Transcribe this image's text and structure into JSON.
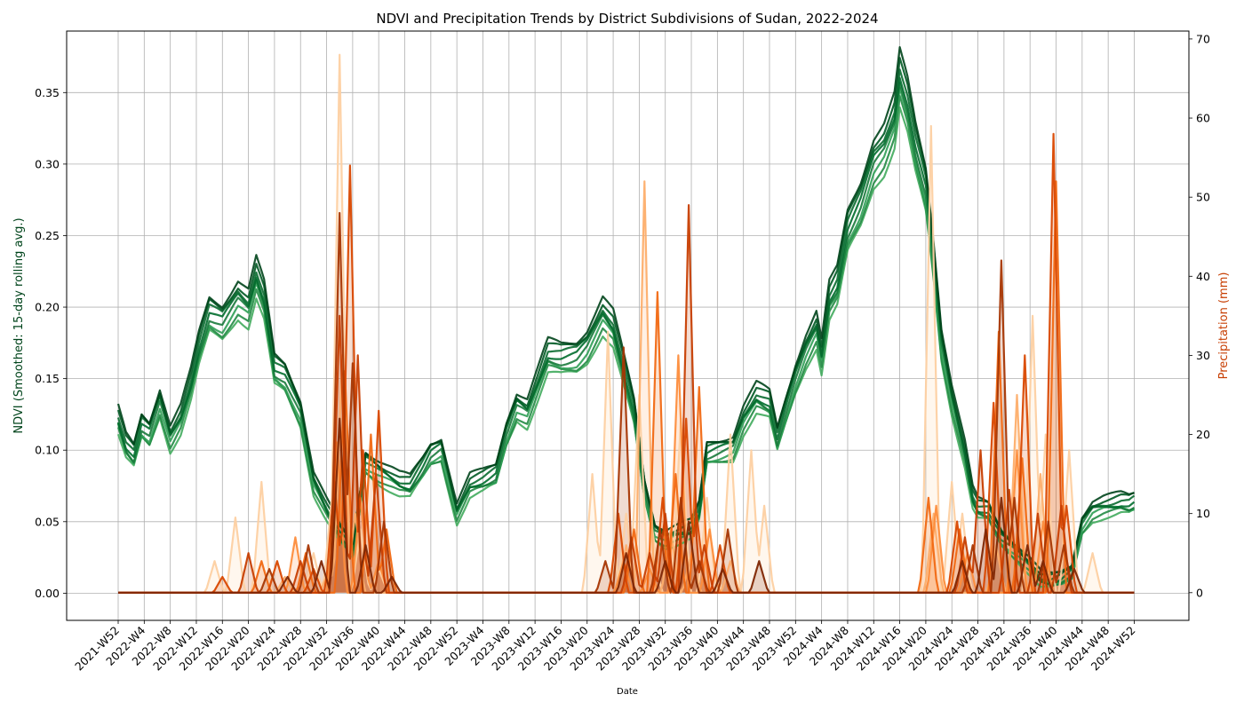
{
  "chart_data": {
    "type": "line",
    "title": "NDVI and Precipitation Trends by District Subdivisions of Sudan, 2022-2024",
    "xlabel": "Date",
    "ylabel_left": "NDVI (Smoothed: 15-day rolling avg.)",
    "ylabel_right": "Precipitation (mm)",
    "ylabel_left_color": "#00441b",
    "ylabel_right_color": "#c73e02",
    "ylim_left": [
      -0.019,
      0.393
    ],
    "ylim_right": [
      -3.5,
      71
    ],
    "yticks_left": [
      "0.00",
      "0.05",
      "0.10",
      "0.15",
      "0.20",
      "0.25",
      "0.30",
      "0.35"
    ],
    "yticks_right": [
      "0",
      "10",
      "20",
      "30",
      "40",
      "50",
      "60",
      "70"
    ],
    "grid": true,
    "x_ticks": [
      "2021-W52",
      "2022-W4",
      "2022-W8",
      "2022-W12",
      "2022-W16",
      "2022-W20",
      "2022-W24",
      "2022-W28",
      "2022-W32",
      "2022-W36",
      "2022-W40",
      "2022-W44",
      "2022-W48",
      "2022-W52",
      "2023-W4",
      "2023-W8",
      "2023-W12",
      "2023-W16",
      "2023-W20",
      "2023-W24",
      "2023-W28",
      "2023-W32",
      "2023-W36",
      "2023-W40",
      "2023-W44",
      "2023-W48",
      "2023-W52",
      "2024-W4",
      "2024-W8",
      "2024-W12",
      "2024-W16",
      "2024-W20",
      "2024-W24",
      "2024-W28",
      "2024-W32",
      "2024-W36",
      "2024-W40",
      "2024-W44",
      "2024-W48",
      "2024-W52"
    ],
    "ndvi_base": {
      "x": [
        0,
        0.3,
        0.6,
        0.9,
        1.2,
        1.6,
        2,
        2.4,
        2.8,
        3.1,
        3.5,
        4,
        4.6,
        5,
        5.3,
        5.6,
        6,
        6.4,
        7,
        7.5,
        8,
        8.5,
        9,
        9.5,
        10,
        10.5,
        10.8,
        11.2,
        11.7,
        12,
        12.4,
        13,
        13.5,
        14,
        14.5,
        14.9,
        15.3,
        15.7,
        16,
        16.5,
        17,
        17.6,
        18,
        18.6,
        19,
        19.4,
        19.8,
        20.2,
        20.6,
        21,
        22,
        22.3,
        22.6,
        23,
        23.6,
        24,
        24.5,
        25,
        25.3,
        25.6,
        26,
        26.4,
        26.8,
        27,
        27.3,
        27.6,
        28,
        28.5,
        29,
        29.4,
        29.8,
        30,
        30.3,
        30.6,
        31,
        31.3,
        31.6,
        32,
        32.5,
        32.8,
        33,
        33.4,
        33.6,
        33.9,
        34.2,
        34.6,
        35,
        35.4,
        35.8,
        36.2,
        36.6,
        37,
        37.4,
        37.8,
        38.2,
        38.5,
        38.8,
        39
      ],
      "y": [
        0.124,
        0.105,
        0.098,
        0.12,
        0.115,
        0.138,
        0.112,
        0.125,
        0.15,
        0.175,
        0.2,
        0.195,
        0.212,
        0.205,
        0.227,
        0.21,
        0.16,
        0.155,
        0.13,
        0.08,
        0.06,
        0.042,
        0.03,
        0.095,
        0.088,
        0.082,
        0.078,
        0.076,
        0.09,
        0.1,
        0.104,
        0.058,
        0.077,
        0.08,
        0.085,
        0.115,
        0.135,
        0.13,
        0.145,
        0.17,
        0.168,
        0.17,
        0.178,
        0.2,
        0.19,
        0.16,
        0.13,
        0.075,
        0.045,
        0.04,
        0.045,
        0.058,
        0.1,
        0.102,
        0.105,
        0.125,
        0.14,
        0.135,
        0.11,
        0.13,
        0.155,
        0.175,
        0.19,
        0.17,
        0.21,
        0.22,
        0.26,
        0.28,
        0.31,
        0.32,
        0.34,
        0.37,
        0.35,
        0.32,
        0.29,
        0.24,
        0.18,
        0.14,
        0.1,
        0.068,
        0.06,
        0.058,
        0.05,
        0.04,
        0.035,
        0.028,
        0.02,
        0.01,
        0.008,
        0.01,
        0.015,
        0.05,
        0.06,
        0.062,
        0.063,
        0.064,
        0.063,
        0.065
      ]
    },
    "precip_series": [
      {
        "color": "#fdd0a2",
        "opacity": 0.95,
        "peaks": [
          [
            3.7,
            4
          ],
          [
            4.5,
            9.5
          ],
          [
            5.5,
            14
          ],
          [
            7.5,
            5
          ],
          [
            8.2,
            12
          ],
          [
            8.5,
            68
          ],
          [
            9.3,
            8
          ],
          [
            10,
            3
          ],
          [
            18.2,
            15
          ],
          [
            18.8,
            33
          ],
          [
            19.5,
            10
          ],
          [
            20,
            25
          ],
          [
            20.5,
            8
          ],
          [
            21.6,
            22
          ],
          [
            22.6,
            12
          ],
          [
            23.5,
            20
          ],
          [
            24.3,
            18
          ],
          [
            24.8,
            11
          ],
          [
            32,
            14
          ],
          [
            32.4,
            10
          ],
          [
            35.1,
            35
          ],
          [
            35.6,
            20
          ],
          [
            36.5,
            18
          ],
          [
            37.4,
            5
          ],
          [
            31.2,
            59
          ]
        ]
      },
      {
        "color": "#fdae6b",
        "opacity": 0.95,
        "peaks": [
          [
            6.4,
            2
          ],
          [
            8.1,
            3
          ],
          [
            8.6,
            30
          ],
          [
            9.1,
            10
          ],
          [
            19.5,
            6
          ],
          [
            20.2,
            52
          ],
          [
            21.2,
            8
          ],
          [
            22,
            5
          ],
          [
            23.5,
            4
          ],
          [
            31.3,
            10
          ],
          [
            33.7,
            6
          ],
          [
            34.5,
            25
          ],
          [
            35.4,
            15
          ]
        ]
      },
      {
        "color": "#fd8d3c",
        "opacity": 0.95,
        "peaks": [
          [
            6.8,
            7
          ],
          [
            8.4,
            19
          ],
          [
            9.3,
            12
          ],
          [
            10,
            4
          ],
          [
            19.4,
            4
          ],
          [
            20.4,
            3
          ],
          [
            21.5,
            30
          ],
          [
            22.7,
            8
          ],
          [
            31.4,
            11
          ],
          [
            32.6,
            5
          ],
          [
            34.5,
            18
          ],
          [
            35.5,
            9
          ]
        ]
      },
      {
        "color": "#f16913",
        "opacity": 0.95,
        "peaks": [
          [
            5.5,
            4
          ],
          [
            7.2,
            5
          ],
          [
            8.7,
            28
          ],
          [
            9.7,
            20
          ],
          [
            10.3,
            8
          ],
          [
            19.8,
            8
          ],
          [
            20.7,
            38
          ],
          [
            21.4,
            15
          ],
          [
            22.3,
            26
          ],
          [
            31.1,
            12
          ],
          [
            32.3,
            8
          ],
          [
            33.8,
            33
          ],
          [
            34.7,
            17
          ],
          [
            36,
            52
          ]
        ]
      },
      {
        "color": "#d94801",
        "opacity": 0.95,
        "peaks": [
          [
            4,
            2
          ],
          [
            6.1,
            4
          ],
          [
            7.5,
            3
          ],
          [
            8.3,
            14
          ],
          [
            8.9,
            54
          ],
          [
            9.4,
            18
          ],
          [
            10,
            23
          ],
          [
            19.2,
            10
          ],
          [
            20.9,
            12
          ],
          [
            21.8,
            22
          ],
          [
            22.2,
            10
          ],
          [
            23.1,
            6
          ],
          [
            32.2,
            9
          ],
          [
            33.6,
            24
          ],
          [
            34.8,
            30
          ],
          [
            35.9,
            58
          ],
          [
            36.4,
            11
          ]
        ]
      },
      {
        "color": "#c73e02",
        "opacity": 0.95,
        "peaks": [
          [
            5,
            5
          ],
          [
            7,
            4
          ],
          [
            8.5,
            35
          ],
          [
            9.2,
            30
          ],
          [
            9.9,
            15
          ],
          [
            19.7,
            7
          ],
          [
            20.4,
            5
          ],
          [
            21,
            10
          ],
          [
            21.9,
            49
          ],
          [
            22.5,
            6
          ],
          [
            32.5,
            7
          ],
          [
            33.1,
            18
          ],
          [
            34.2,
            13
          ],
          [
            35.3,
            10
          ],
          [
            36.2,
            11
          ]
        ]
      },
      {
        "color": "#a63603",
        "opacity": 0.95,
        "peaks": [
          [
            5.8,
            3
          ],
          [
            7.3,
            6
          ],
          [
            8.5,
            48
          ],
          [
            9,
            29
          ],
          [
            10.2,
            9
          ],
          [
            18.7,
            4
          ],
          [
            19.4,
            31
          ],
          [
            20.8,
            8
          ],
          [
            21.6,
            12
          ],
          [
            22.3,
            4
          ],
          [
            23.4,
            8
          ],
          [
            32.8,
            6
          ],
          [
            33.9,
            42
          ],
          [
            34.4,
            12
          ],
          [
            35.7,
            9
          ],
          [
            36.3,
            6
          ]
        ]
      },
      {
        "color": "#7f2704",
        "opacity": 0.95,
        "peaks": [
          [
            6.5,
            2
          ],
          [
            7.8,
            4
          ],
          [
            8.5,
            22
          ],
          [
            9.5,
            6
          ],
          [
            10.5,
            2
          ],
          [
            19.5,
            5
          ],
          [
            21,
            4
          ],
          [
            21.9,
            9
          ],
          [
            23.2,
            3
          ],
          [
            24.6,
            4
          ],
          [
            32.4,
            4
          ],
          [
            33.3,
            8
          ],
          [
            33.9,
            12
          ],
          [
            34.9,
            6
          ],
          [
            35.5,
            4
          ],
          [
            36.7,
            3
          ]
        ]
      }
    ]
  }
}
